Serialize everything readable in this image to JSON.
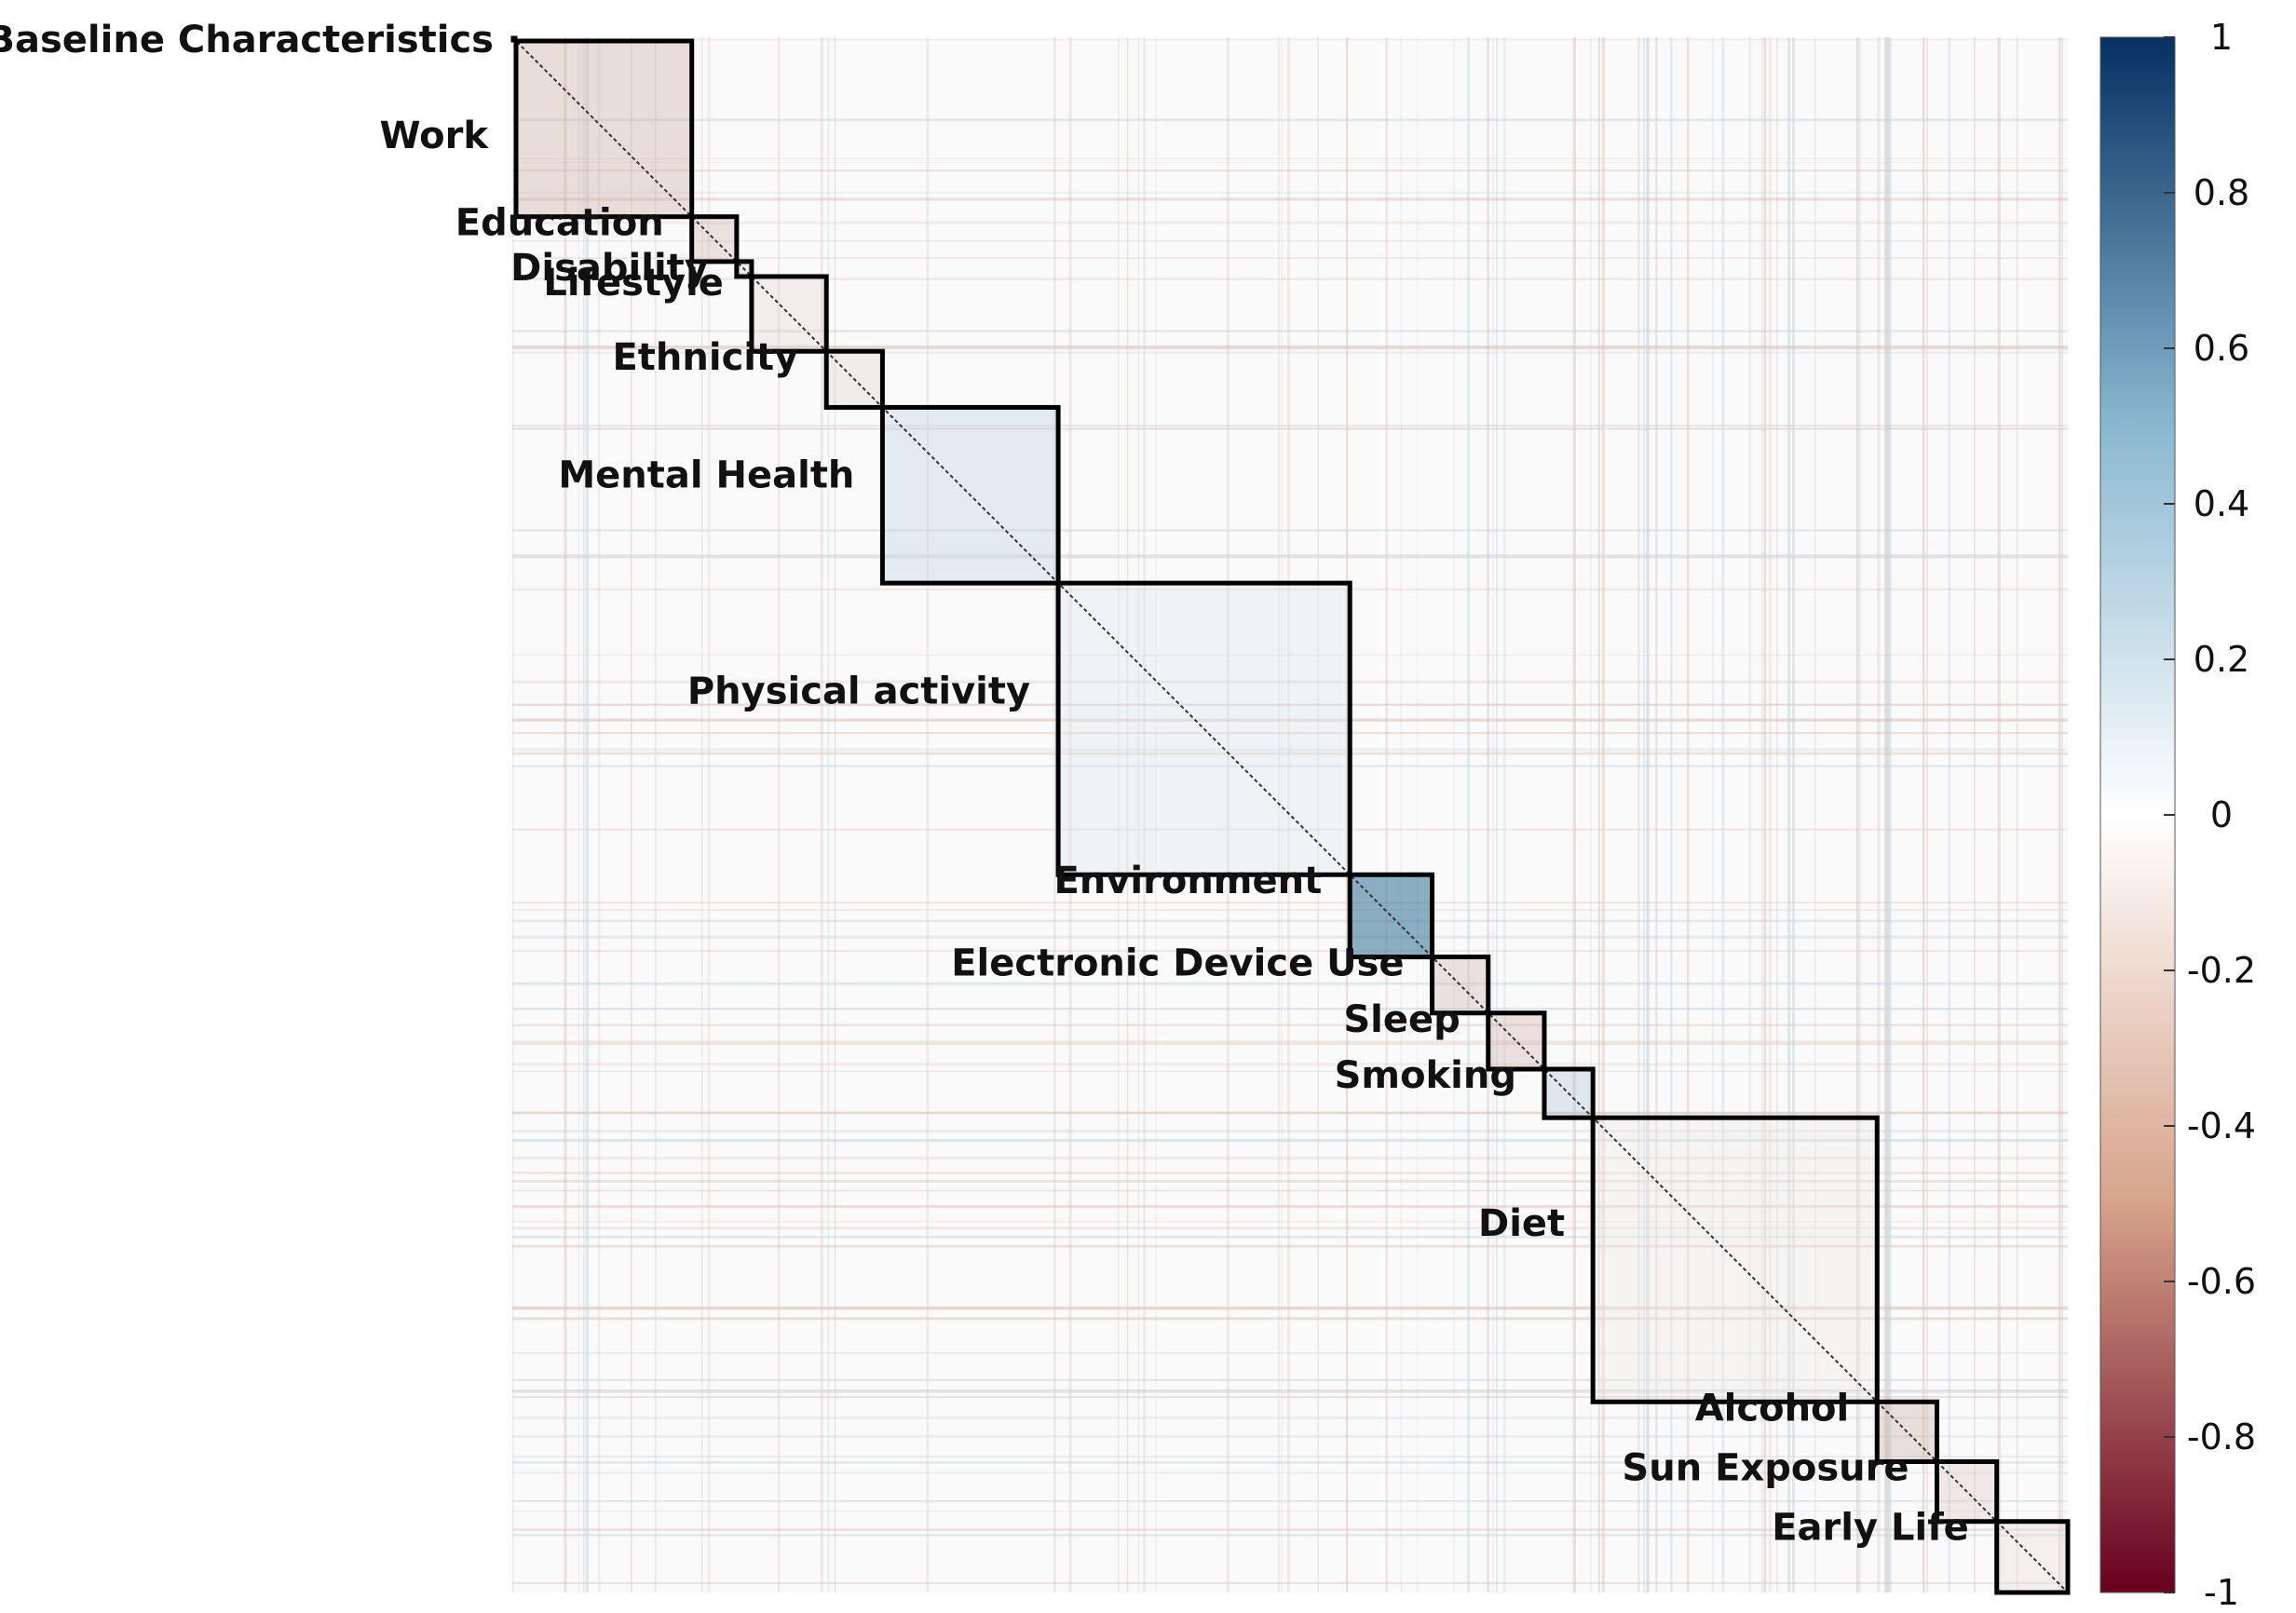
{
  "chart_data": {
    "type": "heatmap",
    "title": "",
    "matrix": "correlation",
    "value_range": [
      -1,
      1
    ],
    "diagonal_value": 1,
    "colorscale": {
      "low_color": "#67001f",
      "mid_low_color": "#d6a38a",
      "mid_color": "#ffffff",
      "mid_high_color": "#8ab8d0",
      "high_color": "#053061"
    },
    "colorbar": {
      "ticks": [
        "1",
        "0.8",
        "0.6",
        "0.4",
        "0.2",
        "0",
        "-0.2",
        "-0.4",
        "-0.6",
        "-0.8",
        "-1"
      ]
    },
    "blocks": [
      {
        "label": "Baseline Characteristics",
        "size": 1
      },
      {
        "label": "Work",
        "size": 47
      },
      {
        "label": "Education",
        "size": 12
      },
      {
        "label": "Disability",
        "size": 4
      },
      {
        "label": "Lifestyle",
        "size": 20
      },
      {
        "label": "Ethnicity",
        "size": 15
      },
      {
        "label": "Mental Health",
        "size": 47
      },
      {
        "label": "Physical activity",
        "size": 78
      },
      {
        "label": "Environment",
        "size": 22
      },
      {
        "label": "Electronic Device Use",
        "size": 15
      },
      {
        "label": "Sleep",
        "size": 15
      },
      {
        "label": "Smoking",
        "size": 13
      },
      {
        "label": "Diet",
        "size": 76
      },
      {
        "label": "Alcohol",
        "size": 16
      },
      {
        "label": "Sun Exposure",
        "size": 16
      },
      {
        "label": "Early Life",
        "size": 19
      }
    ]
  }
}
